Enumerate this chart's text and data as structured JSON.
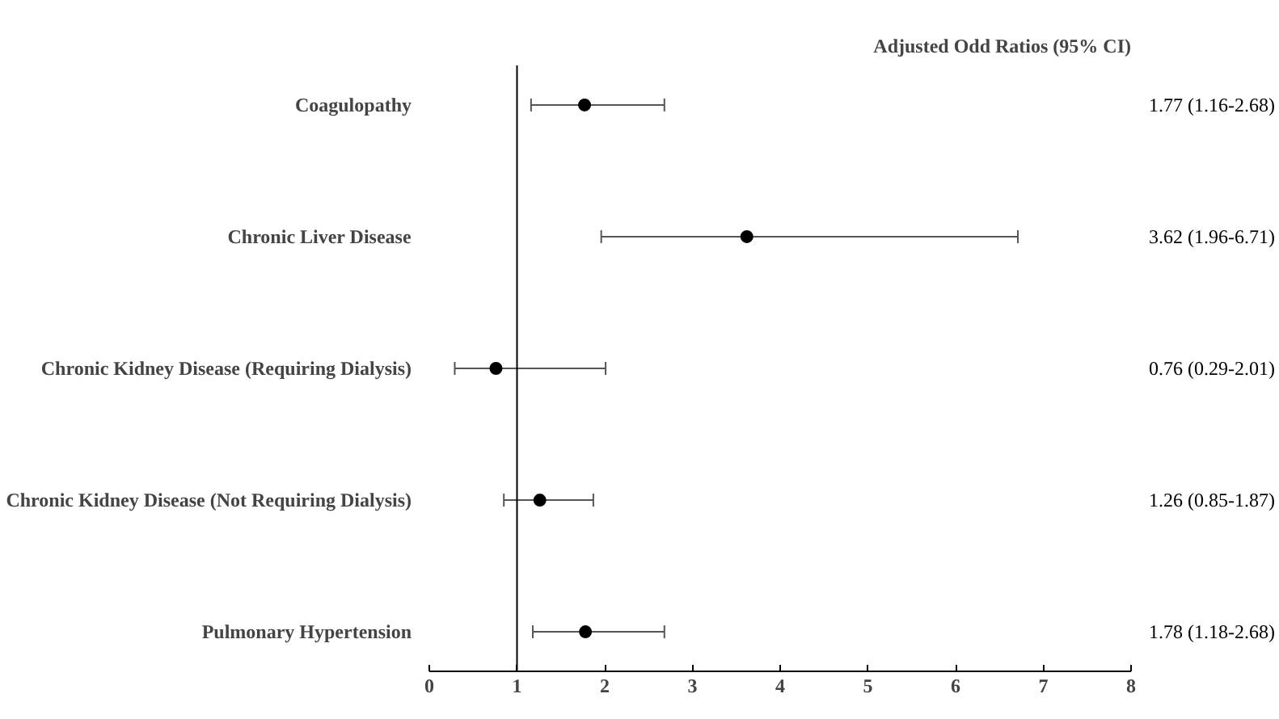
{
  "chart_data": {
    "type": "scatter",
    "orientation": "horizontal",
    "categories": [
      "Coagulopathy",
      "Chronic Liver Disease",
      "Chronic Kidney Disease (Requiring Dialysis)",
      "Chronic Kidney Disease (Not Requiring Dialysis)",
      "Pulmonary Hypertension"
    ],
    "values": [
      1.77,
      3.62,
      0.76,
      1.26,
      1.78
    ],
    "errors": [
      [
        1.16,
        2.68
      ],
      [
        1.96,
        6.71
      ],
      [
        0.29,
        2.01
      ],
      [
        0.85,
        1.87
      ],
      [
        1.18,
        2.68
      ]
    ],
    "title": "Adjusted Odd Ratios (95% CI)",
    "color": "#000000",
    "marker": "circle",
    "xlim": [
      0,
      8
    ],
    "xticks": [
      0,
      1,
      2,
      3,
      4,
      5,
      6,
      7,
      8
    ],
    "ref_lines": [
      {
        "axis": "x",
        "value": 1,
        "label": null,
        "color": "#000000"
      }
    ],
    "annotations": [
      "1.77 (1.16-2.68)",
      "3.62 (1.96-6.71)",
      "0.76 (0.29-2.01)",
      "1.26 (0.85-1.87)",
      "1.78 (1.18-2.68)"
    ],
    "grid": false
  }
}
